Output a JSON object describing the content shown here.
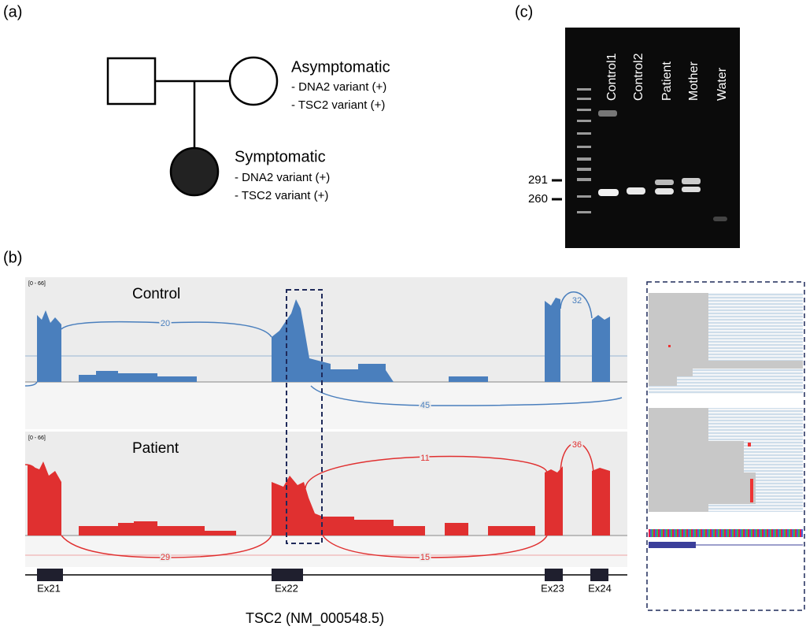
{
  "panel_labels": {
    "a": "(a)",
    "b": "(b)",
    "c": "(c)"
  },
  "pedigree": {
    "mother": {
      "status": "Asymptomatic",
      "variants": [
        "- DNA2 variant (+)",
        "- TSC2 variant (+)"
      ]
    },
    "child": {
      "status": "Symptomatic",
      "variants": [
        "- DNA2 variant (+)",
        "- TSC2 variant (+)"
      ]
    }
  },
  "gel": {
    "lanes": [
      "Control1",
      "Control2",
      "Patient",
      "Mother",
      "Water"
    ],
    "markers": [
      291,
      260
    ]
  },
  "sashimi": {
    "tracks": [
      {
        "range": "[0 - 66]",
        "label": "Control",
        "junctions": [
          20,
          45,
          32
        ]
      },
      {
        "range": "[0 - 66]",
        "label": "Patient",
        "junctions": [
          11,
          29,
          15,
          36
        ]
      }
    ],
    "exons": [
      "Ex21",
      "Ex22",
      "Ex23",
      "Ex24"
    ],
    "gene": "TSC2 (NM_000548.5)"
  }
}
